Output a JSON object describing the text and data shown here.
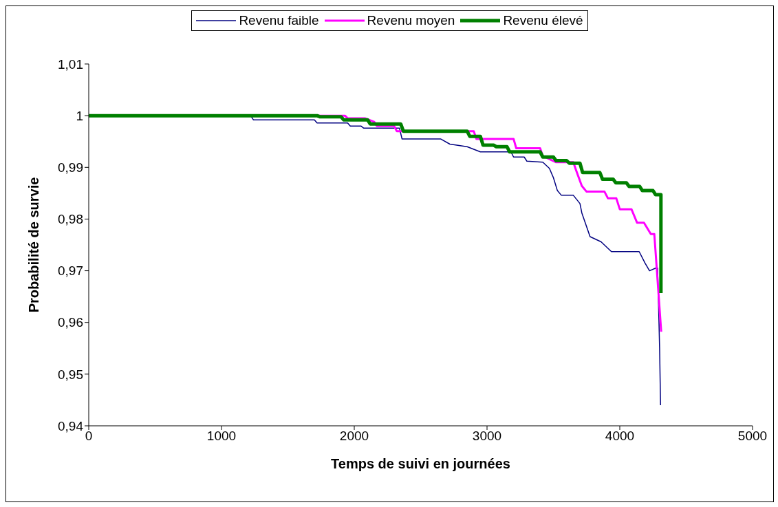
{
  "chart_data": {
    "type": "line",
    "xlabel": "Temps de suivi en journées",
    "ylabel": "Probabilité de survie",
    "xlim": [
      0,
      5000
    ],
    "xticks": [
      0,
      1000,
      2000,
      3000,
      4000,
      5000
    ],
    "ylim": [
      0.94,
      1.01
    ],
    "yticks": [
      {
        "value": 0.94,
        "label": "0,94"
      },
      {
        "value": 0.95,
        "label": "0,95"
      },
      {
        "value": 0.96,
        "label": "0,96"
      },
      {
        "value": 0.97,
        "label": "0,97"
      },
      {
        "value": 0.98,
        "label": "0,98"
      },
      {
        "value": 0.99,
        "label": "0,99"
      },
      {
        "value": 1,
        "label": "1"
      },
      {
        "value": 1.01,
        "label": "1,01"
      }
    ],
    "grid": false,
    "legend": "top",
    "marker": "none",
    "line_style": "solid",
    "series": [
      {
        "name": "Revenu faible",
        "color": "#000080",
        "x": [
          0,
          1220,
          1240,
          1700,
          1720,
          1950,
          1970,
          2050,
          2070,
          2340,
          2360,
          2650,
          2720,
          2850,
          2950,
          3180,
          3200,
          3280,
          3300,
          3420,
          3470,
          3500,
          3530,
          3560,
          3650,
          3700,
          3714,
          3776,
          3859,
          3937,
          4146,
          4190,
          4224,
          4270,
          4285,
          4300,
          4307
        ],
        "values": [
          1,
          1,
          0.9992,
          0.9992,
          0.9986,
          0.9986,
          0.998,
          0.998,
          0.9976,
          0.9976,
          0.9955,
          0.9955,
          0.9945,
          0.994,
          0.993,
          0.993,
          0.992,
          0.992,
          0.9912,
          0.991,
          0.9898,
          0.988,
          0.9855,
          0.9846,
          0.9846,
          0.983,
          0.9812,
          0.9766,
          0.9756,
          0.9737,
          0.9737,
          0.9715,
          0.97,
          0.9705,
          0.9705,
          0.955,
          0.944
        ]
      },
      {
        "name": "Revenu moyen",
        "color": "#ff00ff",
        "x": [
          0,
          1930,
          1950,
          2080,
          2150,
          2170,
          2300,
          2320,
          2900,
          2920,
          3200,
          3220,
          3400,
          3420,
          3520,
          3650,
          3670,
          3714,
          3750,
          3885,
          3911,
          3974,
          4000,
          4088,
          4130,
          4182,
          4234,
          4260,
          4312
        ],
        "values": [
          1,
          1,
          0.9995,
          0.9995,
          0.9988,
          0.998,
          0.998,
          0.997,
          0.997,
          0.9955,
          0.9955,
          0.9937,
          0.9937,
          0.9922,
          0.991,
          0.991,
          0.9895,
          0.9864,
          0.9853,
          0.9853,
          0.984,
          0.984,
          0.9819,
          0.9819,
          0.9793,
          0.9793,
          0.9771,
          0.9771,
          0.9582
        ]
      },
      {
        "name": "Revenu élevé",
        "color": "#008000",
        "x": [
          0,
          1720,
          1740,
          1900,
          1920,
          2100,
          2120,
          2350,
          2370,
          2650,
          2670,
          2850,
          2870,
          2950,
          2970,
          3050,
          3070,
          3150,
          3170,
          3400,
          3420,
          3500,
          3520,
          3600,
          3620,
          3700,
          3720,
          3850,
          3870,
          3950,
          3970,
          4050,
          4070,
          4150,
          4170,
          4250,
          4270,
          4310,
          4310
        ],
        "values": [
          1,
          1,
          0.9998,
          0.9998,
          0.9992,
          0.9992,
          0.9984,
          0.9984,
          0.997,
          0.997,
          0.997,
          0.997,
          0.996,
          0.996,
          0.9943,
          0.9943,
          0.994,
          0.994,
          0.993,
          0.993,
          0.992,
          0.992,
          0.9913,
          0.9913,
          0.9908,
          0.9908,
          0.989,
          0.989,
          0.9877,
          0.9877,
          0.987,
          0.987,
          0.9863,
          0.9863,
          0.9855,
          0.9855,
          0.9847,
          0.9847,
          0.9657
        ]
      }
    ]
  }
}
